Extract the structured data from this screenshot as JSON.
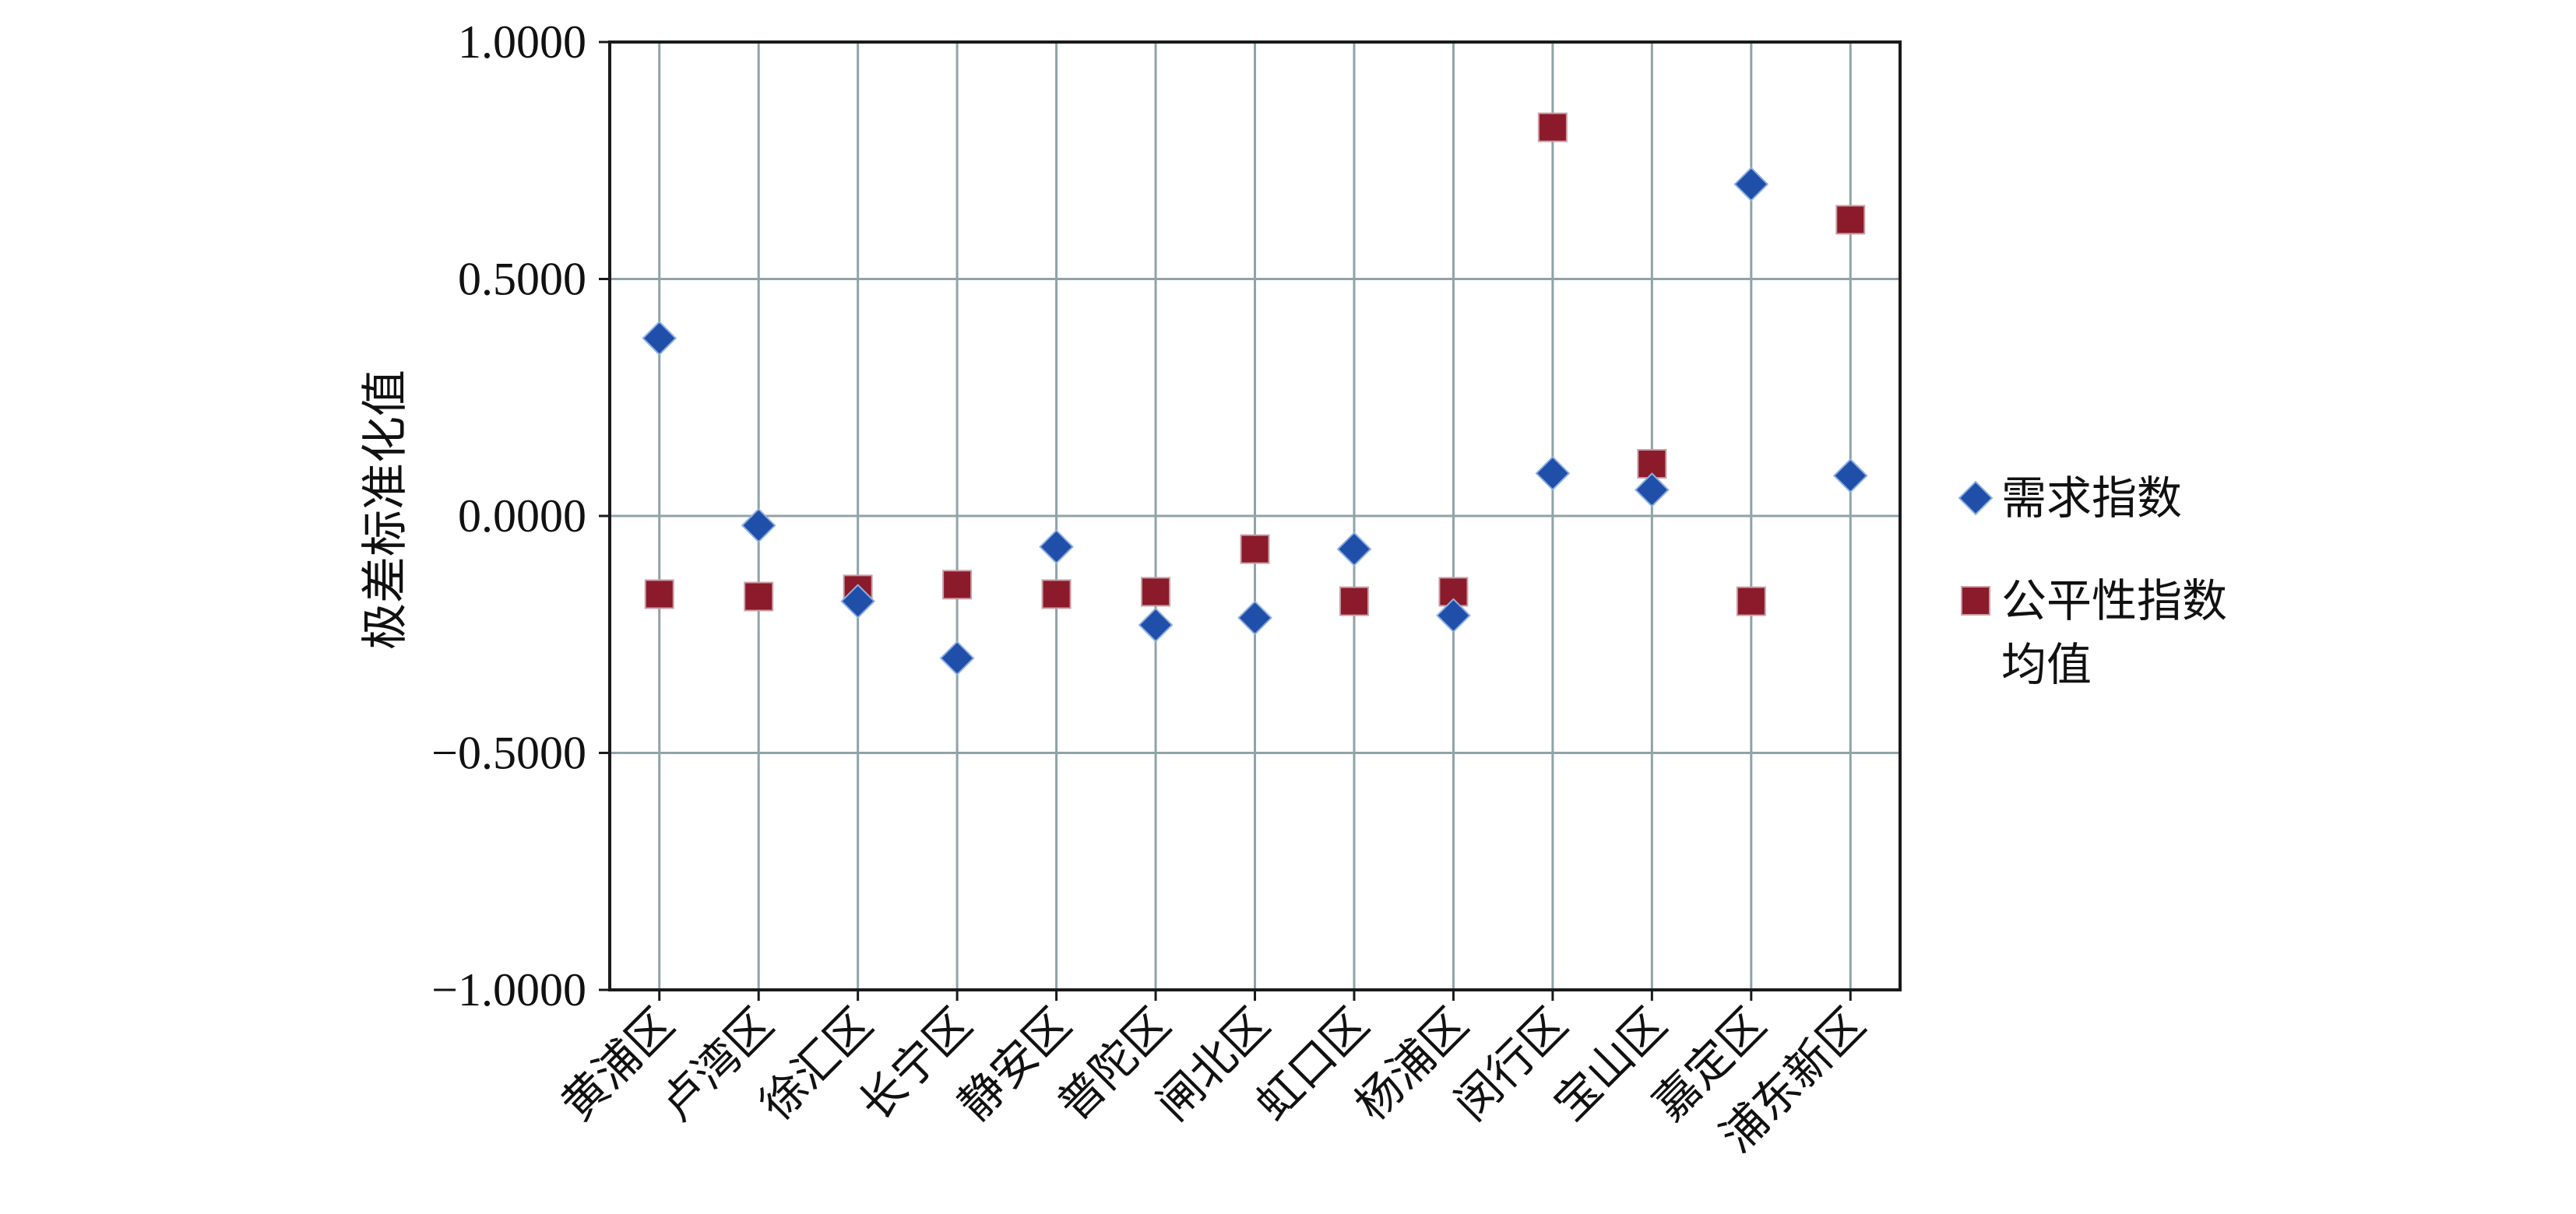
{
  "chart_data": {
    "type": "scatter",
    "title": "",
    "xlabel": "",
    "ylabel": "极差标准化值",
    "ylim": [
      -1.0,
      1.0
    ],
    "yticks": [
      -1.0,
      -0.5,
      0.0,
      0.5,
      1.0
    ],
    "ytick_labels": [
      "−1.0000",
      "−0.5000",
      "0.0000",
      "0.5000",
      "1.0000"
    ],
    "grid": true,
    "legend_position": "right",
    "categories": [
      "黄浦区",
      "卢湾区",
      "徐汇区",
      "长宁区",
      "静安区",
      "普陀区",
      "闸北区",
      "虹口区",
      "杨浦区",
      "闵行区",
      "宝山区",
      "嘉定区",
      "浦东新区"
    ],
    "series": [
      {
        "name": "需求指数",
        "marker": "diamond",
        "color": "#1f4fa8",
        "values": [
          0.375,
          -0.02,
          -0.18,
          -0.3,
          -0.065,
          -0.23,
          -0.215,
          -0.07,
          -0.21,
          0.09,
          0.055,
          0.7,
          0.085
        ]
      },
      {
        "name": "公平性指数均值",
        "legend_lines": [
          "公平性指数",
          "均值"
        ],
        "marker": "square",
        "color": "#8b1a2a",
        "values": [
          -0.165,
          -0.17,
          -0.155,
          -0.145,
          -0.165,
          -0.16,
          -0.07,
          -0.18,
          -0.16,
          0.82,
          0.11,
          -0.18,
          0.625
        ]
      }
    ]
  }
}
